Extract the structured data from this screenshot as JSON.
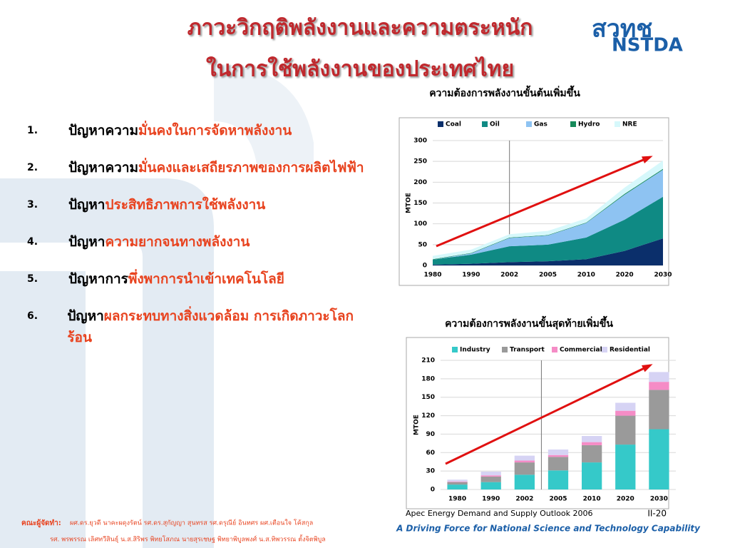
{
  "header": {
    "title_lines": [
      "ภาวะวิกฤติพลังงานและความตระหนัก",
      "ในการใช้พลังงานของประเทศไทย"
    ]
  },
  "logo": {
    "thai": "สวทช",
    "english": "NSTDA"
  },
  "list": [
    {
      "number": "1.",
      "lead": "ปัญหาความ",
      "emphasis": "มั่นคงในการจัดหาพลังงาน"
    },
    {
      "number": "2.",
      "lead": "ปัญหาความ",
      "emphasis": "มั่นคงและเสถียรภาพของการผลิตไฟฟ้า"
    },
    {
      "number": "3.",
      "lead": "ปัญหา",
      "emphasis": "ประสิทธิภาพการใช้พลังงาน"
    },
    {
      "number": "4.",
      "lead": "ปัญหา",
      "emphasis": "ความยากจนทางพลังงาน"
    },
    {
      "number": "5.",
      "lead": "ปัญหาการ",
      "emphasis": "พึ่งพาการนำเข้าเทคโนโลยี"
    },
    {
      "number": "6.",
      "lead": "ปัญหา",
      "emphasis": "ผลกระทบทางสิ่งแวดล้อม การเกิดภาวะโลกร้อน"
    }
  ],
  "charts": [
    {
      "type": "area",
      "title": "ความต้องการพลังงานขั้นต้นเพิ่มขึ้น",
      "y_label": "MTOE",
      "categories": [
        "1980",
        "1990",
        "2002",
        "2005",
        "2010",
        "2020",
        "2030"
      ],
      "series": [
        {
          "name": "Coal",
          "color": "#0b2f6b",
          "values": [
            2,
            4,
            8,
            10,
            15,
            35,
            65
          ]
        },
        {
          "name": "Oil",
          "color": "#0f8a84",
          "values": [
            12,
            22,
            38,
            40,
            52,
            75,
            100
          ]
        },
        {
          "name": "Gas",
          "color": "#8ec3f2",
          "values": [
            0,
            3,
            20,
            22,
            35,
            60,
            65
          ]
        },
        {
          "name": "Hydro",
          "color": "#168a5a",
          "values": [
            1,
            1,
            1,
            1,
            1,
            2,
            2
          ]
        },
        {
          "name": "NRE",
          "color": "#d6f8fb",
          "values": [
            8,
            8,
            8,
            10,
            10,
            15,
            20
          ]
        }
      ],
      "ylim": [
        0,
        300
      ],
      "yticks": [
        0,
        50,
        100,
        150,
        200,
        250,
        300
      ]
    },
    {
      "type": "bar",
      "title": "ความต้องการพลังงานขั้นสุดท้ายเพิ่มขึ้น",
      "y_label": "MTOE",
      "categories": [
        "1980",
        "1990",
        "2002",
        "2005",
        "2010",
        "2020",
        "2030"
      ],
      "series": [
        {
          "name": "Industry",
          "color": "#35c9c9",
          "values": [
            8,
            12,
            24,
            31,
            44,
            73,
            98
          ]
        },
        {
          "name": "Transport",
          "color": "#9a9a9a",
          "values": [
            4,
            9,
            20,
            22,
            28,
            47,
            64
          ]
        },
        {
          "name": "Commercial",
          "color": "#f58cc6",
          "values": [
            1,
            2,
            3,
            3,
            5,
            8,
            13
          ]
        },
        {
          "name": "Residential",
          "color": "#d6d3f4",
          "values": [
            3,
            6,
            8,
            9,
            10,
            13,
            16
          ]
        }
      ],
      "ylim": [
        0,
        210
      ],
      "yticks": [
        0,
        30,
        60,
        90,
        120,
        150,
        180,
        210
      ]
    }
  ],
  "source": "Apec Energy Demand and Supply Outlook 2006",
  "page_number": "II-20",
  "tagline": "A Driving Force for National Science and Technology Capability",
  "credits": {
    "label": "คณะผู้จัดทำ:",
    "line1": "ผศ.ดร.ยุวดี นาคะผดุงรัตน์ รศ.ดร.สุกัญญา สุนทรส รศ.ดรุณีย์ อินทศร ผศ.เตือนใจ โค้สกุล",
    "line2": "รศ. พรพรรณ เลิศทวีสินธุ์ น.ส.สิริพร พิทยโสภณ นายสุรเชษฐ พิทยาพิบูลพงศ์ น.ส.ทิพวรรณ ตั้งจิตพิบูล"
  }
}
